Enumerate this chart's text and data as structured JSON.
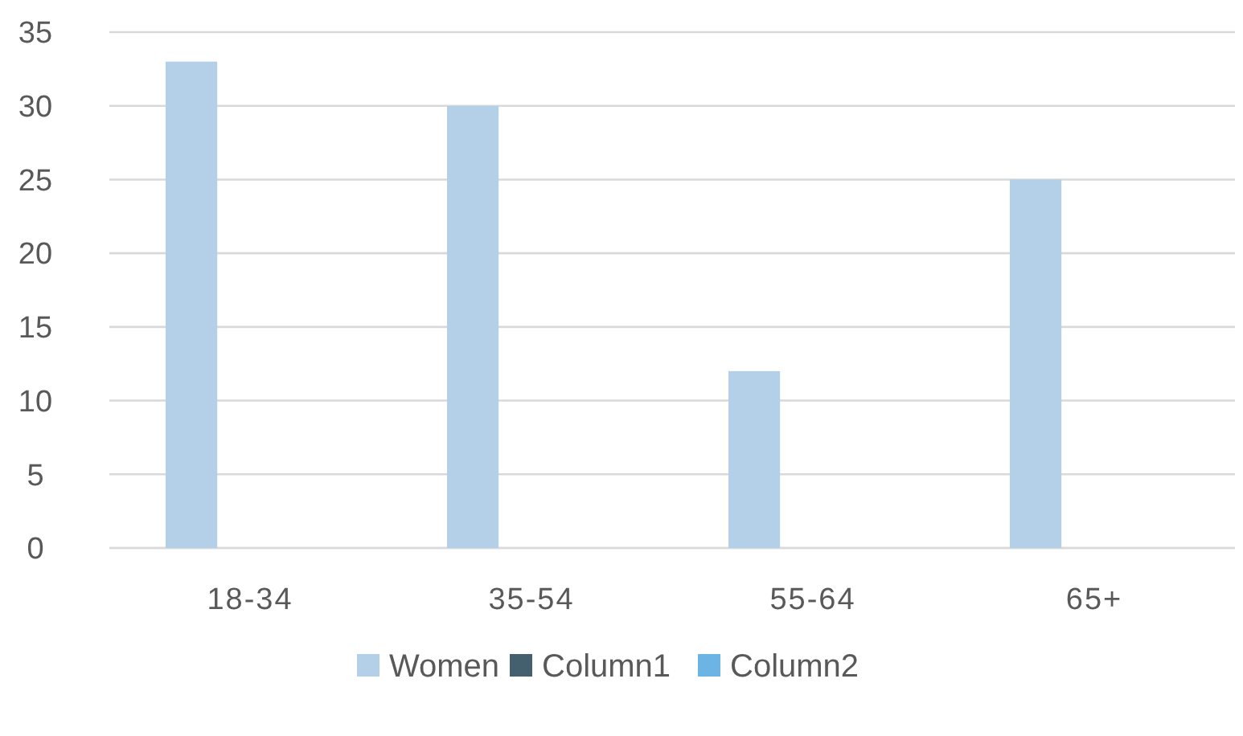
{
  "chart_data": {
    "type": "bar",
    "categories": [
      "18-34",
      "35-54",
      "55-64",
      "65+"
    ],
    "series": [
      {
        "name": "Women",
        "color": "#b4cfe8",
        "values": [
          33,
          30,
          12,
          25
        ]
      },
      {
        "name": "Column1",
        "color": "#44606f",
        "values": [
          null,
          null,
          null,
          null
        ]
      },
      {
        "name": "Column2",
        "color": "#6cb4e4",
        "values": [
          null,
          null,
          null,
          null
        ]
      }
    ],
    "ylim": [
      0,
      35
    ],
    "yticks": [
      0,
      5,
      10,
      15,
      20,
      25,
      30,
      35
    ],
    "grid": "y",
    "legend": "bottom"
  }
}
